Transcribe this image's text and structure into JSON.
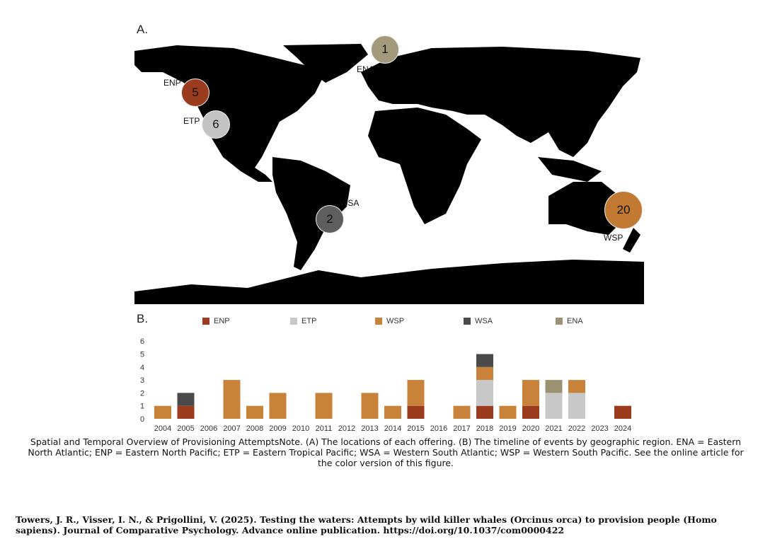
{
  "panel_a": {
    "label": "A.",
    "regions": [
      {
        "code": "ENA",
        "count": "1",
        "color": "#a39a7c"
      },
      {
        "code": "ENP",
        "count": "5",
        "color": "#9b3c1e"
      },
      {
        "code": "ETP",
        "count": "6",
        "color": "#c3c3c3"
      },
      {
        "code": "WSA",
        "count": "2",
        "color": "#5e5e5e"
      },
      {
        "code": "WSP",
        "count": "20",
        "color": "#c27a33"
      }
    ]
  },
  "panel_b": {
    "label": "B."
  },
  "chart_data": {
    "type": "bar",
    "stacked": true,
    "title": "",
    "xlabel": "",
    "ylabel": "",
    "ylim": [
      0,
      6
    ],
    "yticks": [
      "0",
      "1",
      "2",
      "3",
      "4",
      "5",
      "6"
    ],
    "legend_position": "top",
    "categories": [
      "2004",
      "2005",
      "2006",
      "2007",
      "2008",
      "2009",
      "2010",
      "2011",
      "2012",
      "2013",
      "2014",
      "2015",
      "2016",
      "2017",
      "2018",
      "2019",
      "2020",
      "2021",
      "2022",
      "2023",
      "2024"
    ],
    "series": [
      {
        "name": "ENP",
        "color": "#9b3c1e",
        "values": [
          0,
          1,
          0,
          0,
          0,
          0,
          0,
          0,
          0,
          0,
          0,
          1,
          0,
          0,
          1,
          0,
          1,
          0,
          0,
          0,
          1
        ]
      },
      {
        "name": "ETP",
        "color": "#c8c8c8",
        "values": [
          0,
          0,
          0,
          0,
          0,
          0,
          0,
          0,
          0,
          0,
          0,
          0,
          0,
          0,
          2,
          0,
          0,
          2,
          2,
          0,
          0
        ]
      },
      {
        "name": "WSP",
        "color": "#c8823a",
        "values": [
          1,
          0,
          0,
          3,
          1,
          2,
          0,
          2,
          0,
          2,
          1,
          2,
          0,
          1,
          1,
          1,
          2,
          0,
          1,
          0,
          0
        ]
      },
      {
        "name": "WSA",
        "color": "#4a4a4a",
        "values": [
          0,
          1,
          0,
          0,
          0,
          0,
          0,
          0,
          0,
          0,
          0,
          0,
          0,
          0,
          1,
          0,
          0,
          0,
          0,
          0,
          0
        ]
      },
      {
        "name": "ENA",
        "color": "#9c9170",
        "values": [
          0,
          0,
          0,
          0,
          0,
          0,
          0,
          0,
          0,
          0,
          0,
          0,
          0,
          0,
          0,
          0,
          0,
          1,
          0,
          0,
          0
        ]
      }
    ]
  },
  "caption": "Spatial and Temporal Overview of Provisioning AttemptsNote.   (A) The locations of each offering. (B) The timeline of events by geographic region. ENA = Eastern North Atlantic; ENP = Eastern North Pacific; ETP = Eastern Tropical Pacific; WSA = Western South Atlantic; WSP = Western South Pacific. See the online article for the color version of this figure.",
  "citation": "Towers, J. R., Visser, I. N., & Prigollini, V. (2025). Testing the waters: Attempts by wild killer whales (Orcinus orca) to provision people (Homo sapiens). Journal of Comparative Psychology. Advance online publication. https://doi.org/10.1037/com0000422"
}
